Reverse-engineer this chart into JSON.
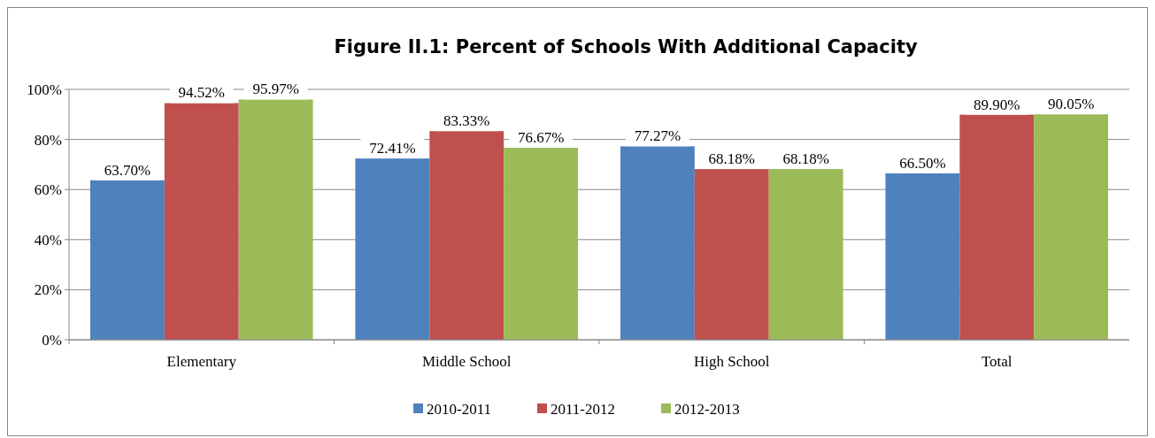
{
  "chart_data": {
    "type": "bar",
    "title": "Figure II.1: Percent of Schools With Additional Capacity",
    "categories": [
      "Elementary",
      "Middle School",
      "High School",
      "Total"
    ],
    "series": [
      {
        "name": "2010-2011",
        "color": "#4f81bd",
        "values": [
          63.7,
          72.41,
          77.27,
          66.5
        ],
        "value_labels": [
          "63.70%",
          "72.41%",
          "77.27%",
          "66.50%"
        ]
      },
      {
        "name": "2011-2012",
        "color": "#c0504d",
        "values": [
          94.52,
          83.33,
          68.18,
          89.9
        ],
        "value_labels": [
          "94.52%",
          "83.33%",
          "68.18%",
          "89.90%"
        ]
      },
      {
        "name": "2012-2013",
        "color": "#9bbb59",
        "values": [
          95.97,
          76.67,
          68.18,
          90.05
        ],
        "value_labels": [
          "95.97%",
          "76.67%",
          "68.18%",
          "90.05%"
        ]
      }
    ],
    "ylim": [
      0,
      100
    ],
    "yticks": [
      {
        "value": 0,
        "label": "0%"
      },
      {
        "value": 20,
        "label": "20%"
      },
      {
        "value": 40,
        "label": "40%"
      },
      {
        "value": 60,
        "label": "60%"
      },
      {
        "value": 80,
        "label": "80%"
      },
      {
        "value": 100,
        "label": "100%"
      }
    ],
    "grid": "y",
    "legend": "bottom"
  }
}
